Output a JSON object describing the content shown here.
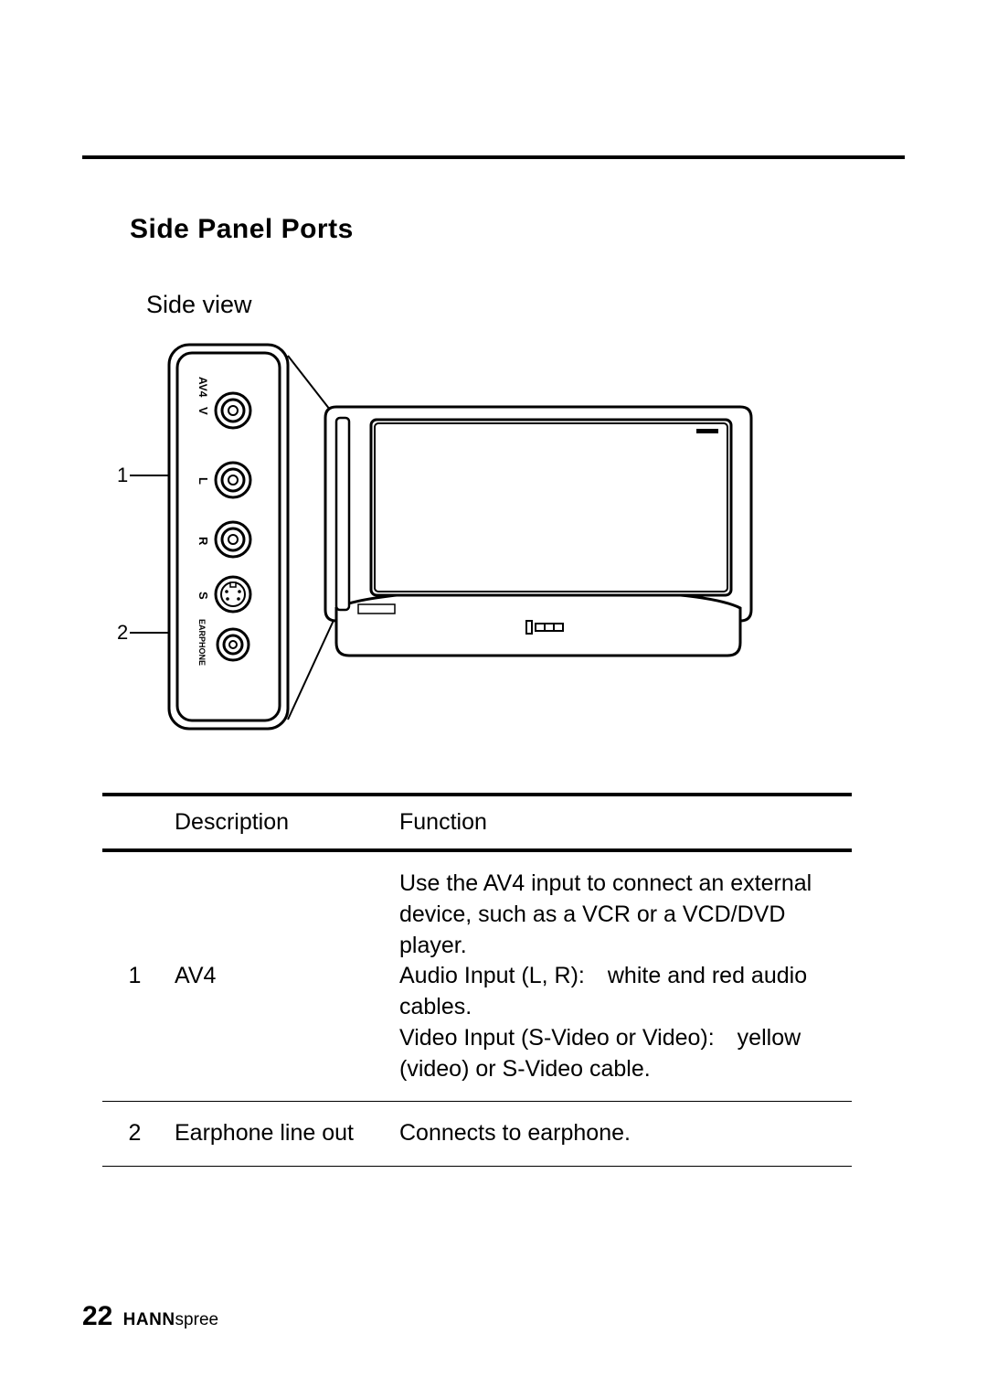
{
  "section_title": "Side Panel Ports",
  "side_view_label": "Side view",
  "callouts": {
    "c1": "1",
    "c2": "2"
  },
  "panel_labels": {
    "av4": "AV4",
    "v": "V",
    "l": "L",
    "r": "R",
    "s": "S",
    "earphone": "EARPHONE"
  },
  "table": {
    "headers": {
      "description": "Description",
      "function": "Function"
    },
    "rows": [
      {
        "num": "1",
        "desc": "AV4",
        "func": "Use the AV4 input to connect an external device, such as a VCR or a VCD/DVD player.\nAudio Input (L, R): white and red audio cables.\nVideo Input (S-Video or Video): yellow (video) or S-Video cable."
      },
      {
        "num": "2",
        "desc": "Earphone line out",
        "func": "Connects to earphone."
      }
    ]
  },
  "footer": {
    "page_number": "22",
    "brand_bold": "HANN",
    "brand_rest": "spree"
  },
  "colors": {
    "stroke": "#000000",
    "fill": "#ffffff"
  }
}
